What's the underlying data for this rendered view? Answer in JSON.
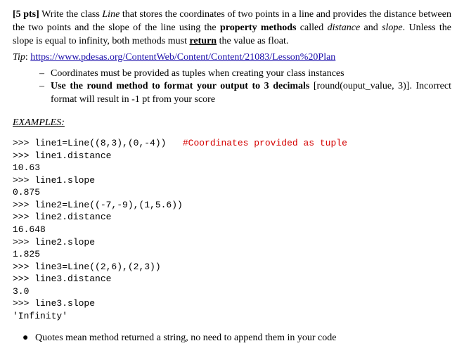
{
  "intro": {
    "pts": "[5 pts]",
    "t1": " Write the class ",
    "cls": "Line",
    "t2": " that stores the coordinates of two points in a line and provides the distance between the two points and the slope of the line using the ",
    "pm": "property methods",
    "t3": " called ",
    "m1": "distance",
    "t4": " and ",
    "m2": "slope",
    "t5": ". Unless the slope is equal to infinity, both methods must ",
    "ret": "return",
    "t6": " the value as float."
  },
  "tip": {
    "label": "Tip",
    "sep": ": ",
    "url": "https://www.pdesas.org/ContentWeb/Content/Content/21083/Lesson%20Plan"
  },
  "bullets": {
    "b1": "Coordinates must be provided as tuples when creating your class instances",
    "b2a": "Use the round method to format your output to 3 decimals",
    "b2b": " [round(ouput_value, 3)]. Incorrect format will result in -1 pt from your score"
  },
  "examples_header": "EXAMPLES:",
  "code": {
    "l01a": ">>> line1=Line((8,3),(0,-4))   ",
    "l01b": "#Coordinates provided as tuple",
    "l02": ">>> line1.distance",
    "l03": "10.63",
    "l04": ">>> line1.slope",
    "l05": "0.875",
    "l06": ">>> line2=Line((-7,-9),(1,5.6))",
    "l07": ">>> line2.distance",
    "l08": "16.648",
    "l09": ">>> line2.slope",
    "l10": "1.825",
    "l11": ">>> line3=Line((2,6),(2,3))",
    "l12": ">>> line3.distance",
    "l13": "3.0",
    "l14": ">>> line3.slope",
    "l15": "'Infinity'"
  },
  "footnote": "Quotes mean method returned a string, no need to append them in your code"
}
